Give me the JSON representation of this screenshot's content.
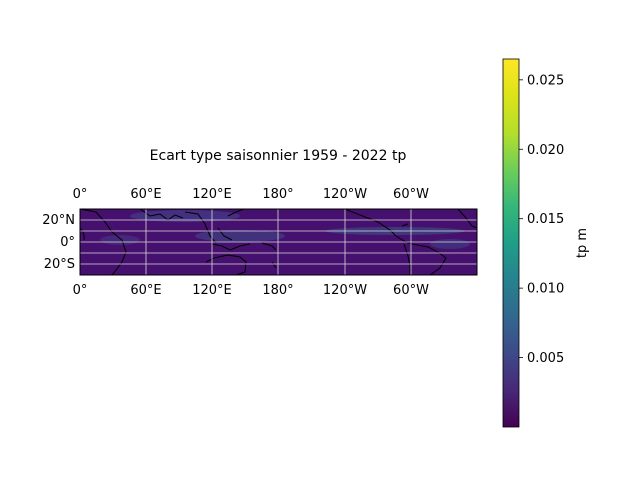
{
  "title": "Ecart type saisonnier 1959 - 2022 tp",
  "map": {
    "extent_lon": [
      0,
      360
    ],
    "extent_lat": [
      -30,
      30
    ],
    "gridlines_lon": [
      0,
      60,
      120,
      180,
      240,
      300
    ],
    "gridlines_lat": [
      -20,
      -10,
      0,
      10,
      20
    ],
    "lon_labels_top": [
      "0°",
      "60°E",
      "120°E",
      "180°",
      "120°W",
      "60°W"
    ],
    "lon_labels_bottom": [
      "0°",
      "60°E",
      "120°E",
      "180°",
      "120°W",
      "60°W"
    ],
    "lat_labels": [
      "20°N",
      "0°",
      "20°S"
    ]
  },
  "colorbar": {
    "label": "tp m",
    "colormap": "viridis",
    "range": [
      0.0,
      0.0265
    ],
    "ticks": [
      "0.005",
      "0.010",
      "0.015",
      "0.020",
      "0.025"
    ],
    "tick_values": [
      0.005,
      0.01,
      0.015,
      0.02,
      0.025
    ]
  },
  "colors": {
    "background_field": "#45106e",
    "gridline": "#d8d8d8",
    "coastline": "#000000"
  }
}
